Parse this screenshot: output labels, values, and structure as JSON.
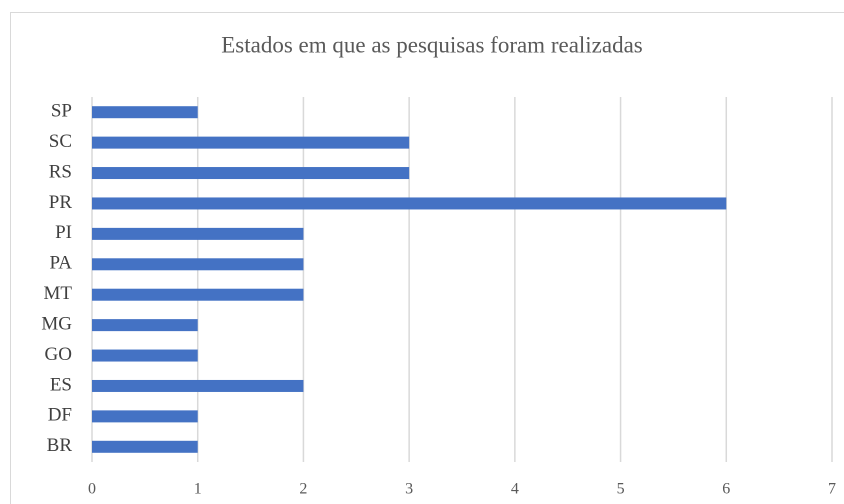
{
  "chart_data": {
    "type": "bar",
    "orientation": "horizontal",
    "title": "Estados em que as pesquisas foram realizadas",
    "categories": [
      "SP",
      "SC",
      "RS",
      "PR",
      "PI",
      "PA",
      "MT",
      "MG",
      "GO",
      "ES",
      "DF",
      "BR"
    ],
    "values": [
      1,
      3,
      3,
      6,
      2,
      2,
      2,
      1,
      1,
      2,
      1,
      1
    ],
    "color": "#4472c4",
    "xlim": [
      0,
      7
    ],
    "xticks": [
      0,
      1,
      2,
      3,
      4,
      5,
      6,
      7
    ],
    "grid": true
  }
}
